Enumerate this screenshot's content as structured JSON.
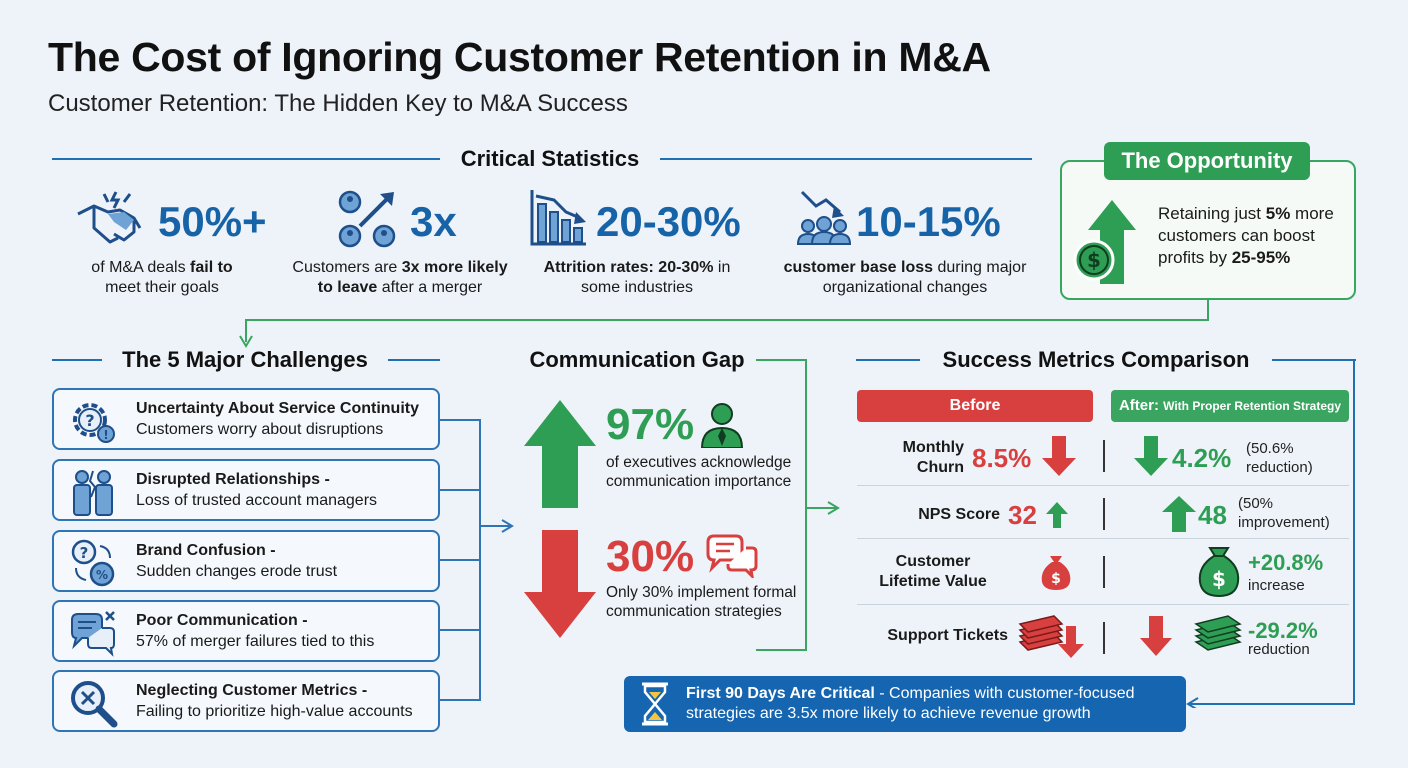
{
  "header": {
    "title": "The Cost of Ignoring Customer Retention in M&A",
    "subtitle": "Customer Retention: The Hidden Key to M&A Success"
  },
  "stats": {
    "heading": "Critical Statistics",
    "items": [
      {
        "value": "50%+",
        "pre": "of M&A deals ",
        "bold": "fail to",
        "post": "meet their goals",
        "icon": "handshake-icon"
      },
      {
        "value": "3x",
        "pre": "Customers are ",
        "bold": "3x more likely to leave",
        "post": " after a merger",
        "icon": "people-leaving-icon"
      },
      {
        "value": "20-30%",
        "bold": "Attrition rates: 20-30%",
        "post": " in some industries",
        "icon": "declining-bar-chart-icon"
      },
      {
        "value": "10-15%",
        "bold": "customer base loss",
        "post": " during major organizational changes",
        "icon": "group-decline-icon"
      }
    ]
  },
  "opportunity": {
    "tag": "The Opportunity",
    "t1": "Retaining just ",
    "b1": "5%",
    "t2": " more customers can boost profits by ",
    "b2": "25-95%"
  },
  "challenges": {
    "heading": "The 5 Major Challenges",
    "items": [
      {
        "title": "Uncertainty About Service Continuity",
        "sub": "Customers worry about disruptions",
        "icon": "gear-question-icon"
      },
      {
        "title": "Disrupted Relationships -",
        "sub": "Loss of trusted account managers",
        "icon": "broken-relationship-icon"
      },
      {
        "title": "Brand Confusion -",
        "sub": "Sudden changes erode trust",
        "icon": "brand-confusion-icon"
      },
      {
        "title": "Poor Communication -",
        "sub": "57% of merger failures tied to this",
        "icon": "chat-bubbles-x-icon"
      },
      {
        "title": "Neglecting Customer Metrics -",
        "sub": "Failing to prioritize high-value accounts",
        "icon": "magnifier-x-icon"
      }
    ]
  },
  "communication": {
    "heading": "Communication Gap",
    "up": {
      "value": "97%",
      "text": "of executives acknowledge communication importance"
    },
    "down": {
      "value": "30%",
      "text": "Only 30% implement formal communication strategies"
    }
  },
  "metrics": {
    "heading": "Success Metrics Comparison",
    "before_label": "Before",
    "after_label": "After:",
    "after_sub": "With Proper Retention Strategy",
    "rows": [
      {
        "label": "Monthly Churn",
        "before": "8.5%",
        "after": "4.2%",
        "note": "(50.6% reduction)"
      },
      {
        "label": "NPS Score",
        "before": "32",
        "after": "48",
        "note": "(50% improvement)"
      },
      {
        "label": "Customer Lifetime Value",
        "after": "+20.8%",
        "note": "increase"
      },
      {
        "label": "Support Tickets",
        "after": "-29.2%",
        "note": "reduction"
      }
    ]
  },
  "banner": {
    "bold": "First 90 Days Are Critical",
    "text1": " - Companies with customer-focused",
    "text2": "strategies are 3.5x more likely to achieve revenue growth",
    "icon": "hourglass-icon"
  },
  "colors": {
    "blue": "#1763a8",
    "green": "#2f9e55",
    "red": "#d84040",
    "navy": "#1565b0"
  }
}
